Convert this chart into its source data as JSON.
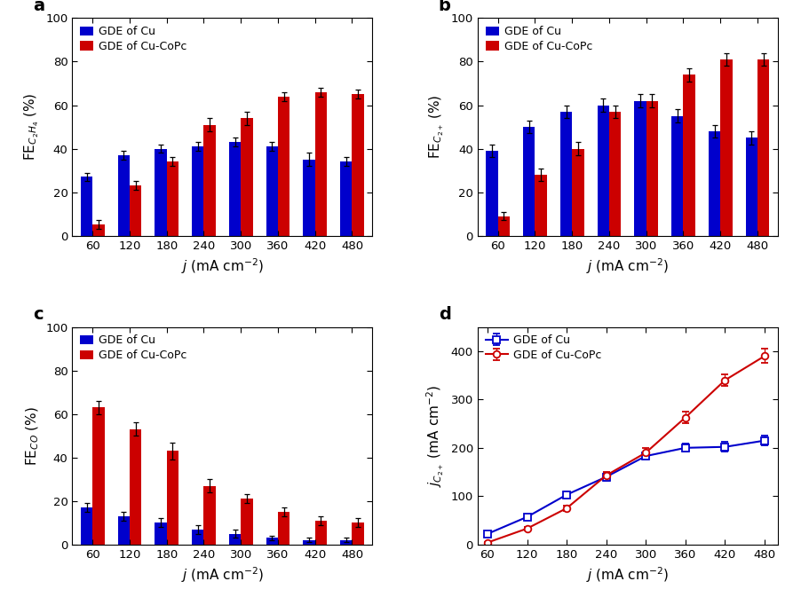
{
  "x_labels": [
    60,
    120,
    180,
    240,
    300,
    360,
    420,
    480
  ],
  "panel_a": {
    "title": "a",
    "ylabel": "FE$_{C_2H_4}$ (%)",
    "cu_vals": [
      27,
      37,
      40,
      41,
      43,
      41,
      35,
      34
    ],
    "copc_vals": [
      5,
      23,
      34,
      51,
      54,
      64,
      66,
      65
    ],
    "cu_err": [
      2,
      2,
      2,
      2,
      2,
      2,
      3,
      2
    ],
    "copc_err": [
      2,
      2,
      2,
      3,
      3,
      2,
      2,
      2
    ],
    "ylim": [
      0,
      100
    ]
  },
  "panel_b": {
    "title": "b",
    "ylabel": "FE$_{C_{2+}}$ (%)",
    "cu_vals": [
      39,
      50,
      57,
      60,
      62,
      55,
      48,
      45
    ],
    "copc_vals": [
      9,
      28,
      40,
      57,
      62,
      74,
      81,
      81
    ],
    "cu_err": [
      3,
      3,
      3,
      3,
      3,
      3,
      3,
      3
    ],
    "copc_err": [
      2,
      3,
      3,
      3,
      3,
      3,
      3,
      3
    ],
    "ylim": [
      0,
      100
    ]
  },
  "panel_c": {
    "title": "c",
    "ylabel": "FE$_{CO}$ (%)",
    "cu_vals": [
      17,
      13,
      10,
      7,
      5,
      3,
      2,
      2
    ],
    "copc_vals": [
      63,
      53,
      43,
      27,
      21,
      15,
      11,
      10
    ],
    "cu_err": [
      2,
      2,
      2,
      2,
      2,
      1,
      1,
      1
    ],
    "copc_err": [
      3,
      3,
      4,
      3,
      2,
      2,
      2,
      2
    ],
    "ylim": [
      0,
      100
    ]
  },
  "panel_d": {
    "title": "d",
    "ylabel": "$j_{C_{2+}}$ (mA cm$^{-2}$)",
    "cu_vals": [
      22,
      57,
      103,
      140,
      183,
      200,
      202,
      215
    ],
    "copc_vals": [
      4,
      33,
      75,
      143,
      190,
      263,
      340,
      390
    ],
    "cu_err": [
      3,
      4,
      6,
      8,
      8,
      8,
      10,
      10
    ],
    "copc_err": [
      2,
      4,
      6,
      8,
      10,
      12,
      12,
      15
    ],
    "ylim": [
      0,
      450
    ],
    "yticks": [
      0,
      100,
      200,
      300,
      400
    ]
  },
  "cu_color": "#0000cc",
  "copc_color": "#cc0000",
  "xlabel": "$j$ (mA cm$^{-2}$)",
  "bar_width": 0.32,
  "legend_cu": "GDE of Cu",
  "legend_copc": "GDE of Cu-CoPc"
}
